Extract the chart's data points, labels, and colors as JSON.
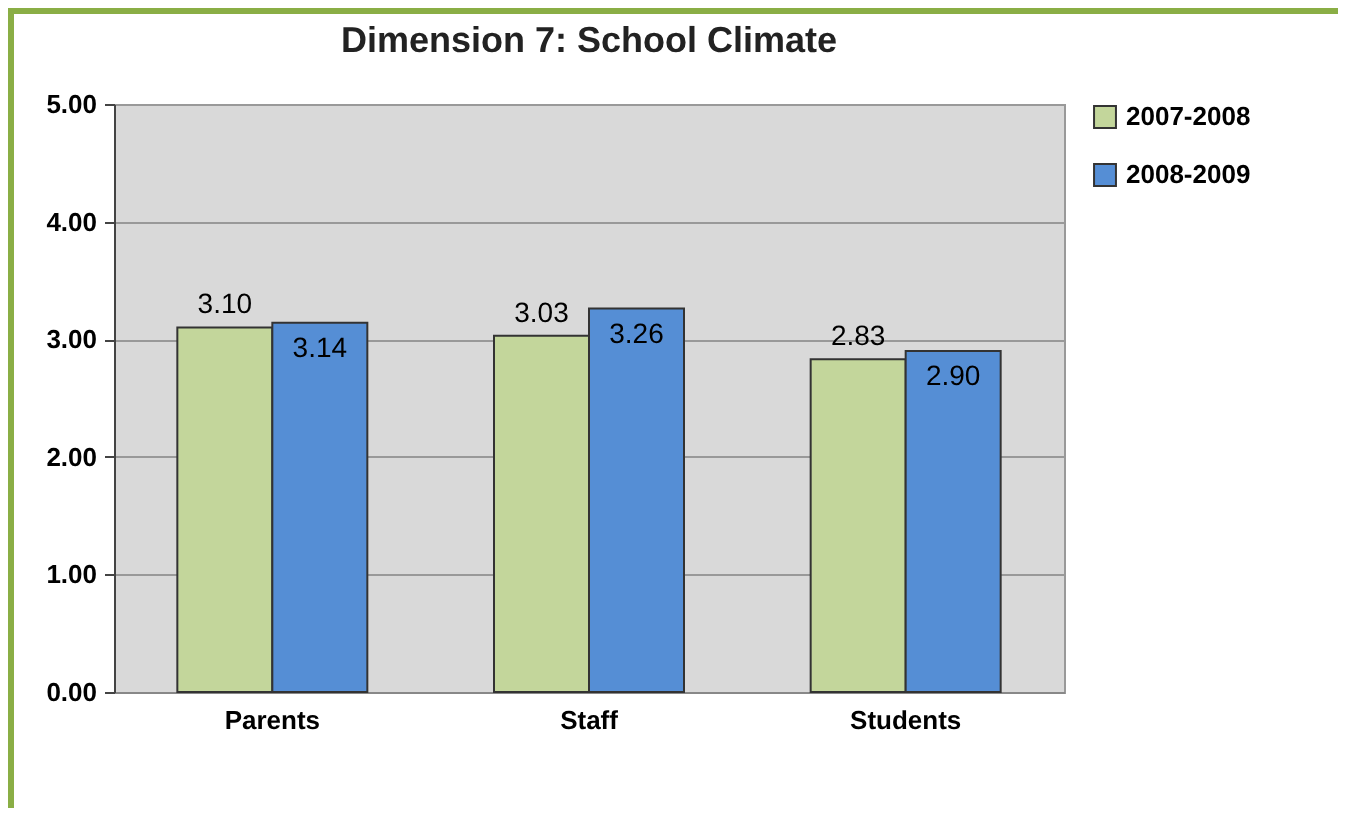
{
  "chart_data": {
    "type": "bar",
    "title": "Dimension 7: School Climate",
    "categories": [
      "Parents",
      "Staff",
      "Students"
    ],
    "series": [
      {
        "name": "2007-2008",
        "color": "#c3d69b",
        "values": [
          3.1,
          3.03,
          2.83
        ],
        "value_labels": [
          "3.10",
          "3.03",
          "2.83"
        ]
      },
      {
        "name": "2008-2009",
        "color": "#558ed5",
        "values": [
          3.14,
          3.26,
          2.9
        ],
        "value_labels": [
          "3.14",
          "3.26",
          "2.90"
        ]
      }
    ],
    "ylim": [
      0,
      5
    ],
    "yticks": [
      {
        "value": 0,
        "label": "0.00"
      },
      {
        "value": 1,
        "label": "1.00"
      },
      {
        "value": 2,
        "label": "2.00"
      },
      {
        "value": 3,
        "label": "3.00"
      },
      {
        "value": 4,
        "label": "4.00"
      },
      {
        "value": 5,
        "label": "5.00"
      }
    ],
    "grid": true,
    "legend": "right"
  }
}
